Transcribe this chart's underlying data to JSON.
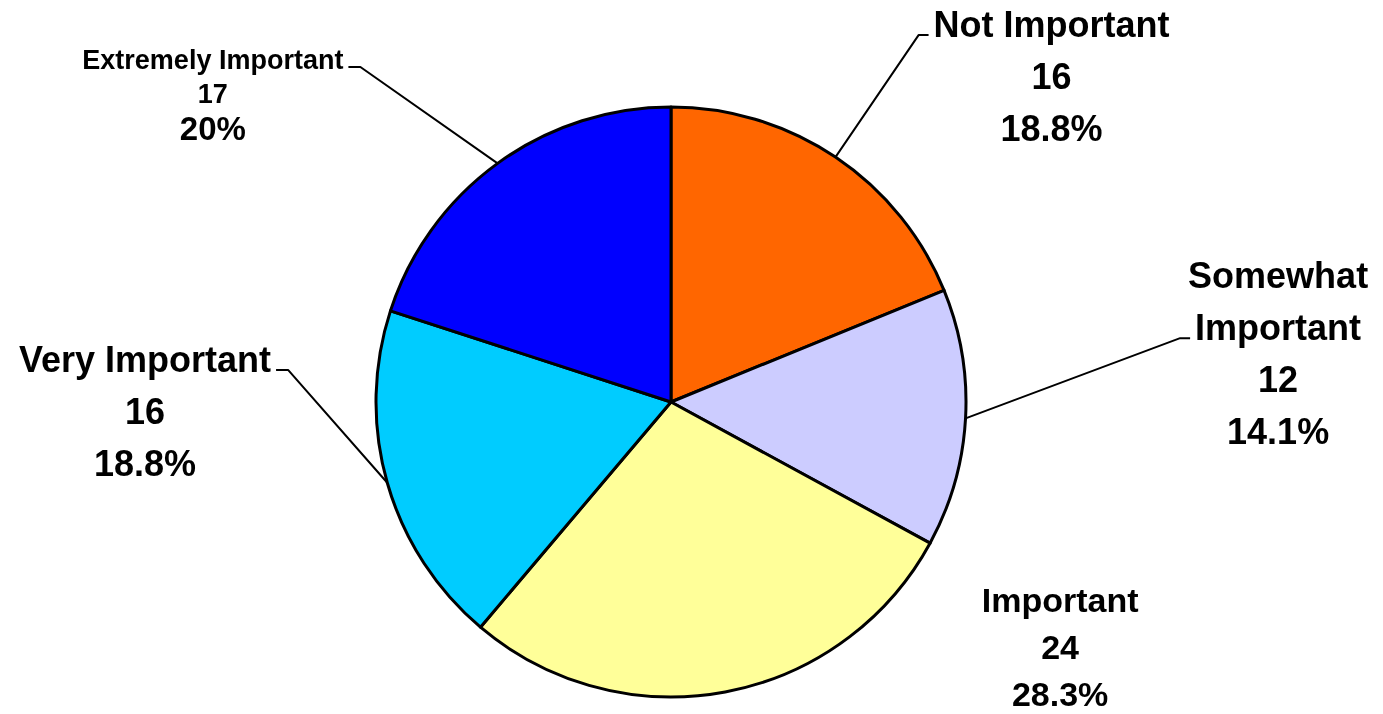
{
  "chart_data": {
    "type": "pie",
    "categories": [
      "Not Important",
      "Somewhat Important",
      "Important",
      "Very Important",
      "Extremely Important"
    ],
    "values": [
      16,
      12,
      24,
      16,
      17
    ],
    "colors": [
      "#ff6600",
      "#ccccff",
      "#ffff99",
      "#00ccff",
      "#0000ff"
    ],
    "value_labels": [
      "16\n18.8%",
      "12\n14.1%",
      "24\n28.3%",
      "16\n18.8%",
      "17\n20%"
    ]
  }
}
